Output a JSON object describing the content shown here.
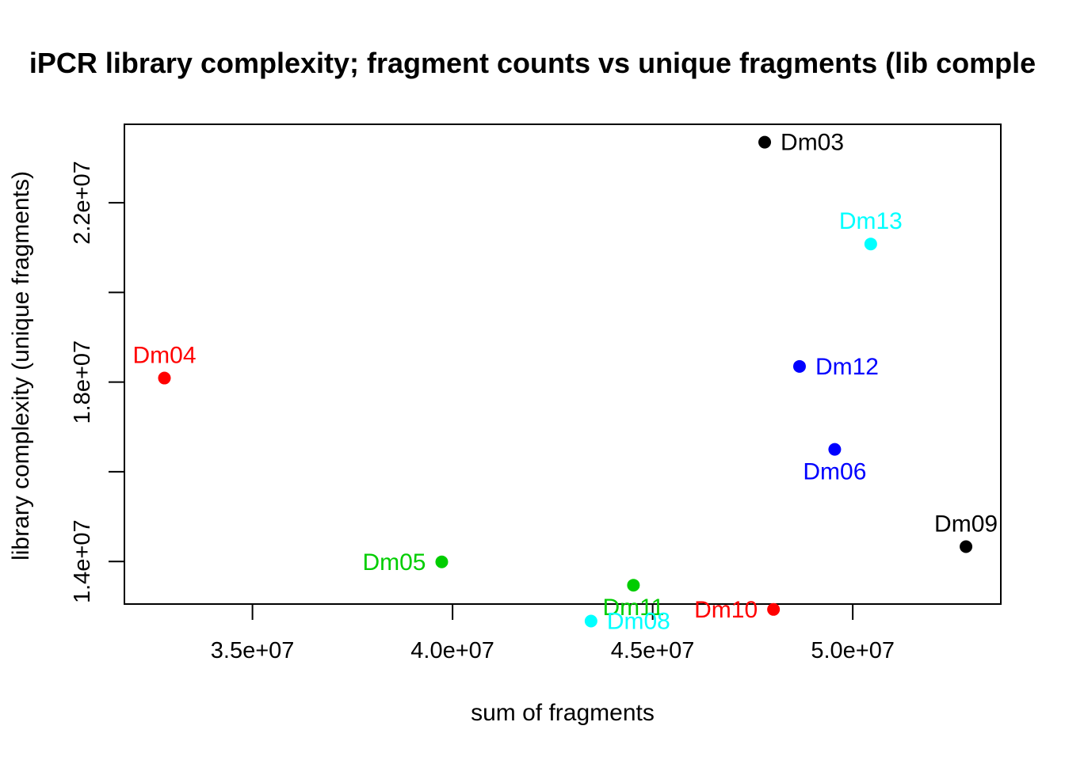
{
  "chart_data": {
    "type": "scatter",
    "title": "iPCR library complexity; fragment counts vs unique fragments (lib comple",
    "xlabel": "sum of fragments",
    "ylabel": "library complexity (unique fragments)",
    "xlim": [
      31800000,
      53700000
    ],
    "ylim": [
      13050000,
      23750000
    ],
    "x_ticks": [
      35000000,
      40000000,
      45000000,
      50000000
    ],
    "x_tick_labels": [
      "3.5e+07",
      "4.0e+07",
      "4.5e+07",
      "5.0e+07"
    ],
    "y_ticks": [
      14000000,
      16000000,
      18000000,
      20000000,
      22000000
    ],
    "y_tick_labels": [
      "1.4e+07",
      "",
      "1.8e+07",
      "",
      "2.2e+07"
    ],
    "grid": false,
    "legend": "none",
    "points": [
      {
        "label": "Dm03",
        "x": 47800000,
        "y": 23350000,
        "color": "#000000",
        "label_pos": "right"
      },
      {
        "label": "Dm13",
        "x": 50450000,
        "y": 21080000,
        "color": "#00ffff",
        "label_pos": "top"
      },
      {
        "label": "Dm12",
        "x": 48670000,
        "y": 18350000,
        "color": "#0000ff",
        "label_pos": "right"
      },
      {
        "label": "Dm04",
        "x": 32800000,
        "y": 18090000,
        "color": "#ff0000",
        "label_pos": "top"
      },
      {
        "label": "Dm06",
        "x": 49550000,
        "y": 16500000,
        "color": "#0000ff",
        "label_pos": "bottom"
      },
      {
        "label": "Dm09",
        "x": 52830000,
        "y": 14330000,
        "color": "#000000",
        "label_pos": "top"
      },
      {
        "label": "Dm05",
        "x": 39730000,
        "y": 13990000,
        "color": "#00cd00",
        "label_pos": "left"
      },
      {
        "label": "Dm11",
        "x": 44520000,
        "y": 13470000,
        "color": "#00cd00",
        "label_pos": "bottom"
      },
      {
        "label": "Dm10",
        "x": 48020000,
        "y": 12930000,
        "color": "#ff0000",
        "label_pos": "left"
      },
      {
        "label": "Dm08",
        "x": 43460000,
        "y": 12670000,
        "color": "#00ffff",
        "label_pos": "right"
      }
    ]
  }
}
